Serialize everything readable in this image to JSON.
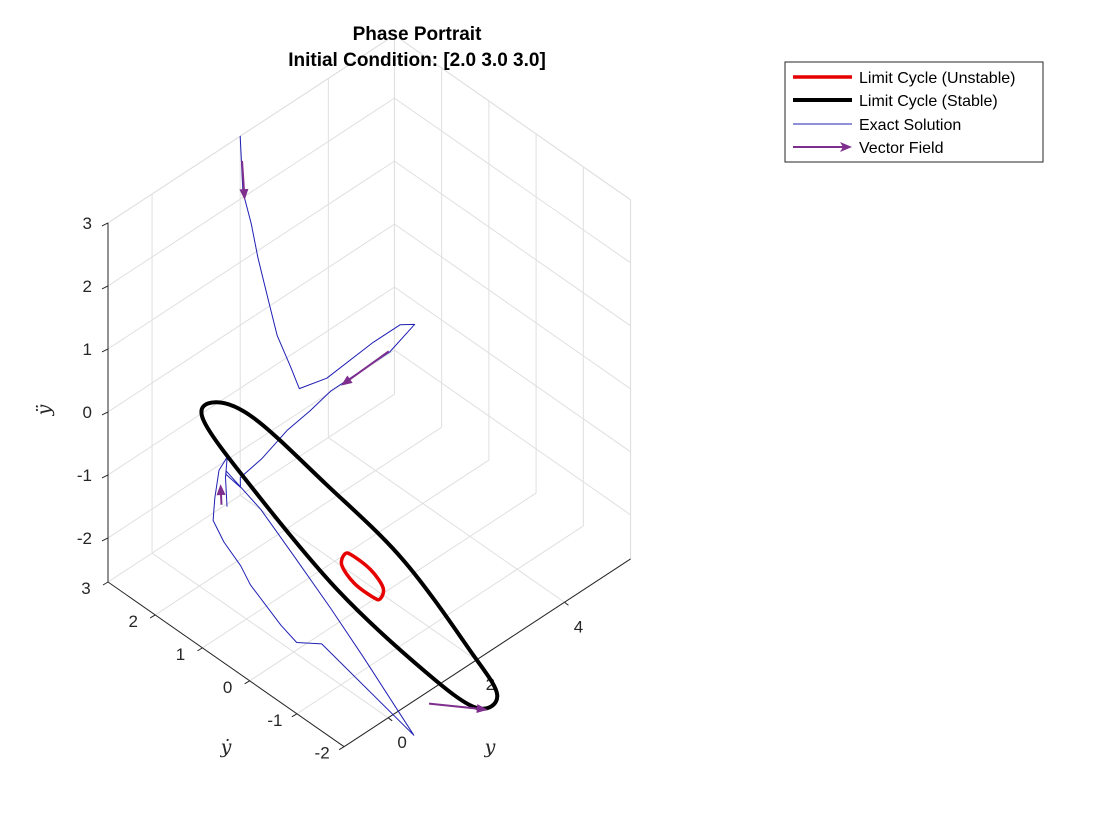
{
  "chart_data": {
    "type": "line",
    "projection": "3d",
    "title": "Phase Portrait",
    "subtitle": "Initial Condition: [2.0 3.0 3.0]",
    "axes": {
      "x": {
        "label": "y",
        "range": [
          -1,
          5.5
        ],
        "ticks": [
          0,
          2,
          4
        ],
        "tick_labels": [
          "0",
          "2",
          "4"
        ]
      },
      "y": {
        "label": "ẏ",
        "range": [
          -2,
          3
        ],
        "ticks": [
          -2,
          -1,
          0,
          1,
          2,
          3
        ],
        "tick_labels": [
          "-2",
          "-1",
          "0",
          "1",
          "2",
          "3"
        ]
      },
      "z": {
        "label": "ÿ",
        "range": [
          -2.7,
          3
        ],
        "ticks": [
          -2,
          -1,
          0,
          1,
          2,
          3
        ],
        "tick_labels": [
          "-2",
          "-1",
          "0",
          "1",
          "2",
          "3"
        ]
      }
    },
    "grid": true,
    "legend_position": "top-right",
    "series": [
      {
        "name": "Limit Cycle (Unstable)",
        "color": "#e60000",
        "style": "closed-loop",
        "points": [
          [
            -0.18,
            -1.4,
            -0.35
          ],
          [
            0.08,
            -1.56,
            -0.62
          ],
          [
            0.42,
            -1.5,
            -1.09
          ],
          [
            0.61,
            -1.26,
            -1.48
          ],
          [
            0.63,
            -1.09,
            -1.55
          ],
          [
            0.36,
            -0.94,
            -1.28
          ],
          [
            0.02,
            -1.0,
            -0.81
          ],
          [
            -0.17,
            -1.24,
            -0.42
          ]
        ]
      },
      {
        "name": "Limit Cycle (Stable)",
        "color": "#000000",
        "style": "closed-loop",
        "points": [
          [
            -1.29,
            -0.38,
            1.79
          ],
          [
            -0.82,
            -1.43,
            1.1
          ],
          [
            0.03,
            -2.27,
            -0.05
          ],
          [
            1.12,
            -2.68,
            -1.78
          ],
          [
            1.82,
            -2.61,
            -2.85
          ],
          [
            2.01,
            -1.98,
            -3.47
          ],
          [
            1.79,
            -1.1,
            -3.25
          ],
          [
            0.93,
            -0.06,
            -2.11
          ],
          [
            -0.12,
            0.75,
            -0.45
          ],
          [
            -1.14,
            0.85,
            1.06
          ],
          [
            -1.46,
            0.29,
            1.78
          ]
        ]
      },
      {
        "name": "Exact Solution",
        "color": "#1f1fb4",
        "style": "polyline",
        "points": [
          [
            2.0,
            3.0,
            3.0
          ],
          [
            2.05,
            2.99,
            2.1
          ],
          [
            2.25,
            3.0,
            1.5
          ],
          [
            2.39,
            2.99,
            0.9
          ],
          [
            2.64,
            3.0,
            0.1
          ],
          [
            2.84,
            3.0,
            -0.55
          ],
          [
            3.15,
            3.0,
            -1.2
          ],
          [
            3.34,
            3.0,
            -1.62
          ],
          [
            3.9,
            2.94,
            -1.68
          ],
          [
            4.63,
            2.64,
            -1.29
          ],
          [
            5.06,
            2.47,
            -1.12
          ],
          [
            5.11,
            2.21,
            -1.0
          ],
          [
            4.61,
            2.27,
            -1.24
          ],
          [
            3.53,
            2.51,
            -1.49
          ],
          [
            3.07,
            2.52,
            -1.6
          ],
          [
            2.57,
            2.54,
            -1.69
          ],
          [
            2.21,
            2.74,
            -2.08
          ],
          [
            1.96,
            2.96,
            -2.38
          ],
          [
            1.79,
            2.8,
            -2.37
          ],
          [
            1.53,
            2.86,
            -2.08
          ],
          [
            1.4,
            2.74,
            -1.9
          ],
          [
            1.15,
            1.77,
            -1.89
          ],
          [
            0.78,
            0.71,
            -1.92
          ],
          [
            0.42,
            -0.38,
            -1.99
          ],
          [
            0.05,
            -1.43,
            -2.06
          ],
          [
            0.4,
            -2.17,
            -3.07
          ],
          [
            -0.32,
            -0.89,
            -1.96
          ],
          [
            -0.79,
            -0.8,
            -1.77
          ],
          [
            -1.0,
            -0.66,
            -1.47
          ],
          [
            -1.25,
            -0.25,
            -0.93
          ],
          [
            -1.3,
            -0.09,
            -0.69
          ],
          [
            -1.51,
            0.07,
            -0.3
          ],
          [
            -1.4,
            0.4,
            -0.18
          ],
          [
            -0.88,
            0.85,
            -0.3
          ],
          [
            -0.12,
            1.47,
            -0.53
          ],
          [
            0.43,
            1.81,
            -0.75
          ],
          [
            -0.22,
            1.24,
            -0.48
          ],
          [
            -1.01,
            0.47,
            -0.17
          ]
        ]
      }
    ],
    "vector_field": {
      "name": "Vector Field",
      "color": "#7e2f8e",
      "arrows": [
        {
          "from": [
            2.03,
            2.99,
            2.6
          ],
          "to": [
            2.09,
            2.99,
            1.95
          ]
        },
        {
          "from": [
            4.6,
            2.28,
            -1.23
          ],
          "to": [
            3.72,
            2.47,
            -1.47
          ]
        },
        {
          "from": [
            -1.05,
            0.55,
            -0.17
          ],
          "to": [
            -0.45,
            1.13,
            -0.42
          ]
        },
        {
          "from": [
            0.98,
            -1.95,
            -2.95
          ],
          "to": [
            1.65,
            -2.57,
            -3.03
          ]
        }
      ]
    },
    "view": {
      "azimuth_deg": -37.5,
      "elevation_deg": 30
    }
  }
}
